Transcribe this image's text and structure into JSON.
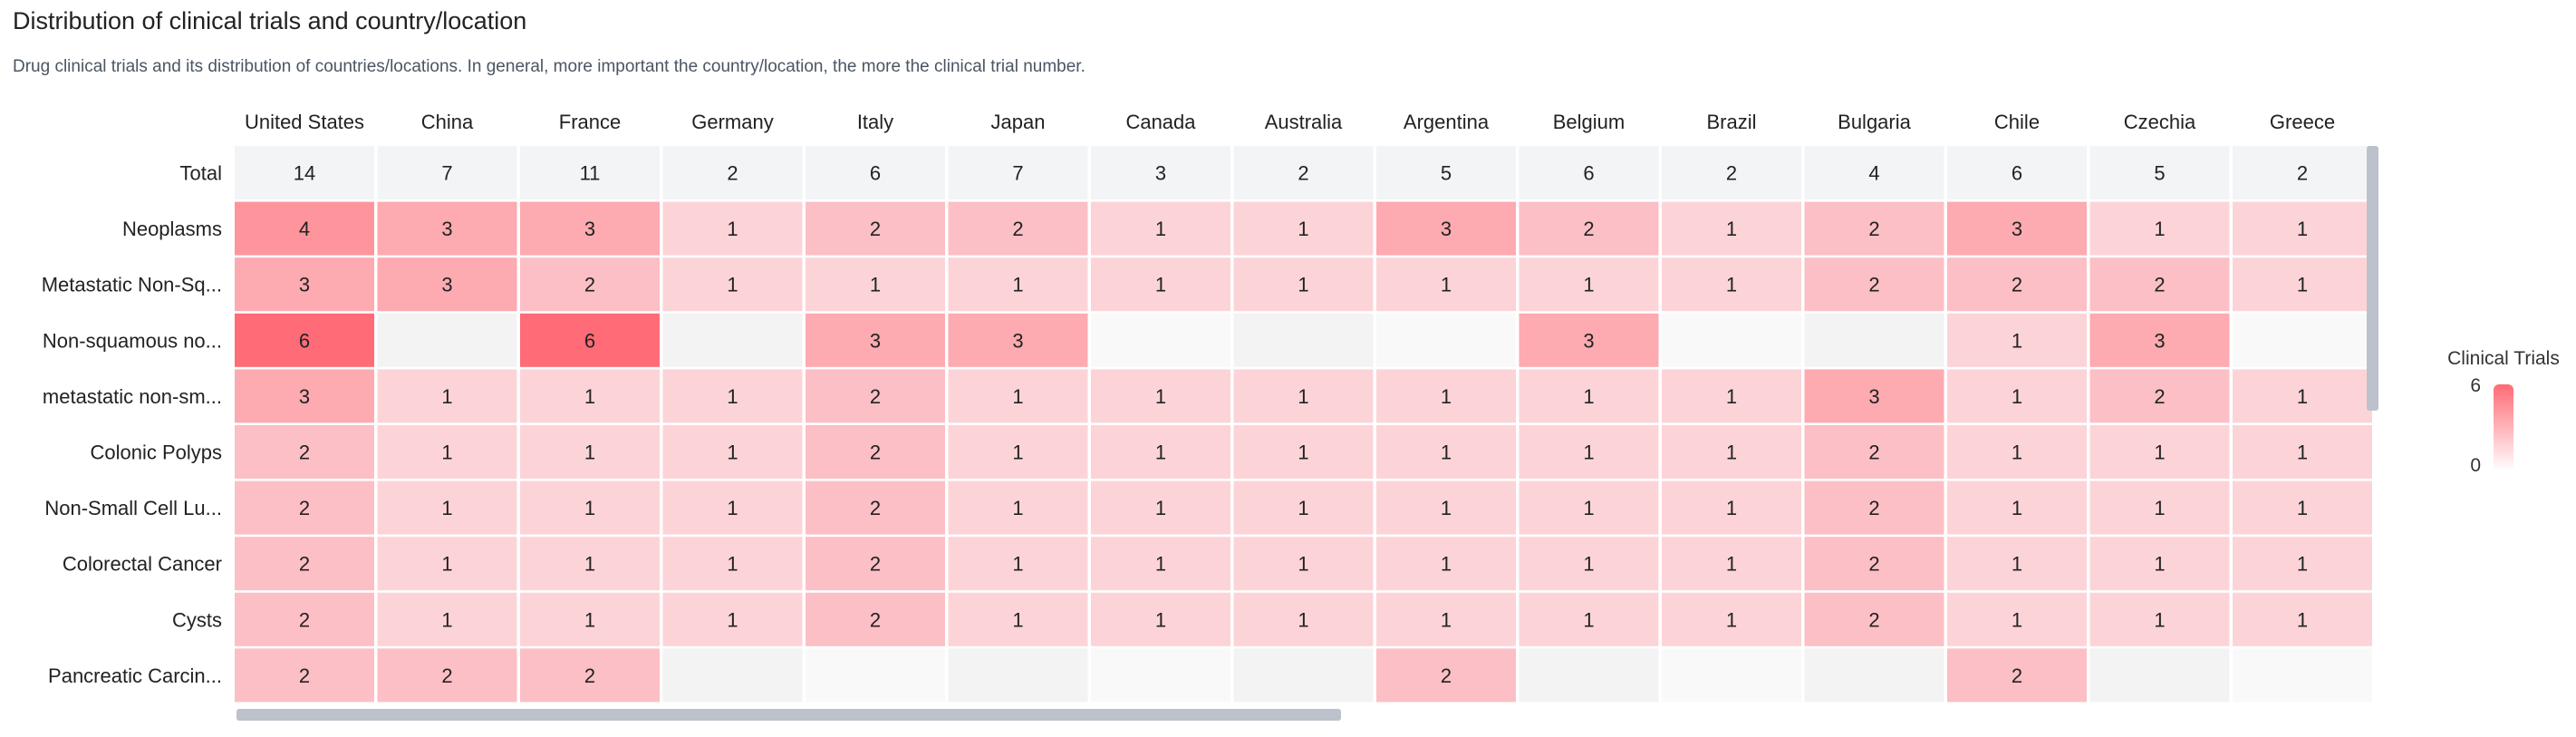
{
  "header": {
    "title": "Distribution of clinical trials and country/location",
    "subtitle": "Drug clinical trials and its distribution of countries/locations. In general, more important the country/location, the more the clinical trial number."
  },
  "chart_data": {
    "type": "heatmap",
    "columns": [
      "United States",
      "China",
      "France",
      "Germany",
      "Italy",
      "Japan",
      "Canada",
      "Australia",
      "Argentina",
      "Belgium",
      "Brazil",
      "Bulgaria",
      "Chile",
      "Czechia",
      "Greece"
    ],
    "rows": [
      "Total",
      "Neoplasms",
      "Metastatic Non-Sq...",
      "Non-squamous no...",
      "metastatic non-sm...",
      "Colonic Polyps",
      "Non-Small Cell Lu...",
      "Colorectal Cancer",
      "Cysts",
      "Pancreatic Carcin..."
    ],
    "values": [
      [
        14,
        7,
        11,
        2,
        6,
        7,
        3,
        2,
        5,
        6,
        2,
        4,
        6,
        5,
        2
      ],
      [
        4,
        3,
        3,
        1,
        2,
        2,
        1,
        1,
        3,
        2,
        1,
        2,
        3,
        1,
        1
      ],
      [
        3,
        3,
        2,
        1,
        1,
        1,
        1,
        1,
        1,
        1,
        1,
        2,
        2,
        2,
        1
      ],
      [
        6,
        null,
        6,
        null,
        3,
        3,
        null,
        null,
        null,
        3,
        null,
        null,
        1,
        3,
        null
      ],
      [
        3,
        1,
        1,
        1,
        2,
        1,
        1,
        1,
        1,
        1,
        1,
        3,
        1,
        2,
        1
      ],
      [
        2,
        1,
        1,
        1,
        2,
        1,
        1,
        1,
        1,
        1,
        1,
        2,
        1,
        1,
        1
      ],
      [
        2,
        1,
        1,
        1,
        2,
        1,
        1,
        1,
        1,
        1,
        1,
        2,
        1,
        1,
        1
      ],
      [
        2,
        1,
        1,
        1,
        2,
        1,
        1,
        1,
        1,
        1,
        1,
        2,
        1,
        1,
        1
      ],
      [
        2,
        1,
        1,
        1,
        2,
        1,
        1,
        1,
        1,
        1,
        1,
        2,
        1,
        1,
        1
      ],
      [
        2,
        2,
        2,
        null,
        null,
        null,
        null,
        null,
        2,
        null,
        null,
        null,
        2,
        null,
        null
      ]
    ],
    "color_range": [
      0,
      6
    ],
    "colors": {
      "max": "#ff6b76",
      "min": "#fbe9ec",
      "total_row": "#f3f4f6",
      "empty_a": "#f9f9f9",
      "empty_b": "#f3f3f3"
    },
    "legend": {
      "title": "Clinical Trials",
      "max_label": "6",
      "min_label": "0",
      "placement": "right"
    }
  }
}
